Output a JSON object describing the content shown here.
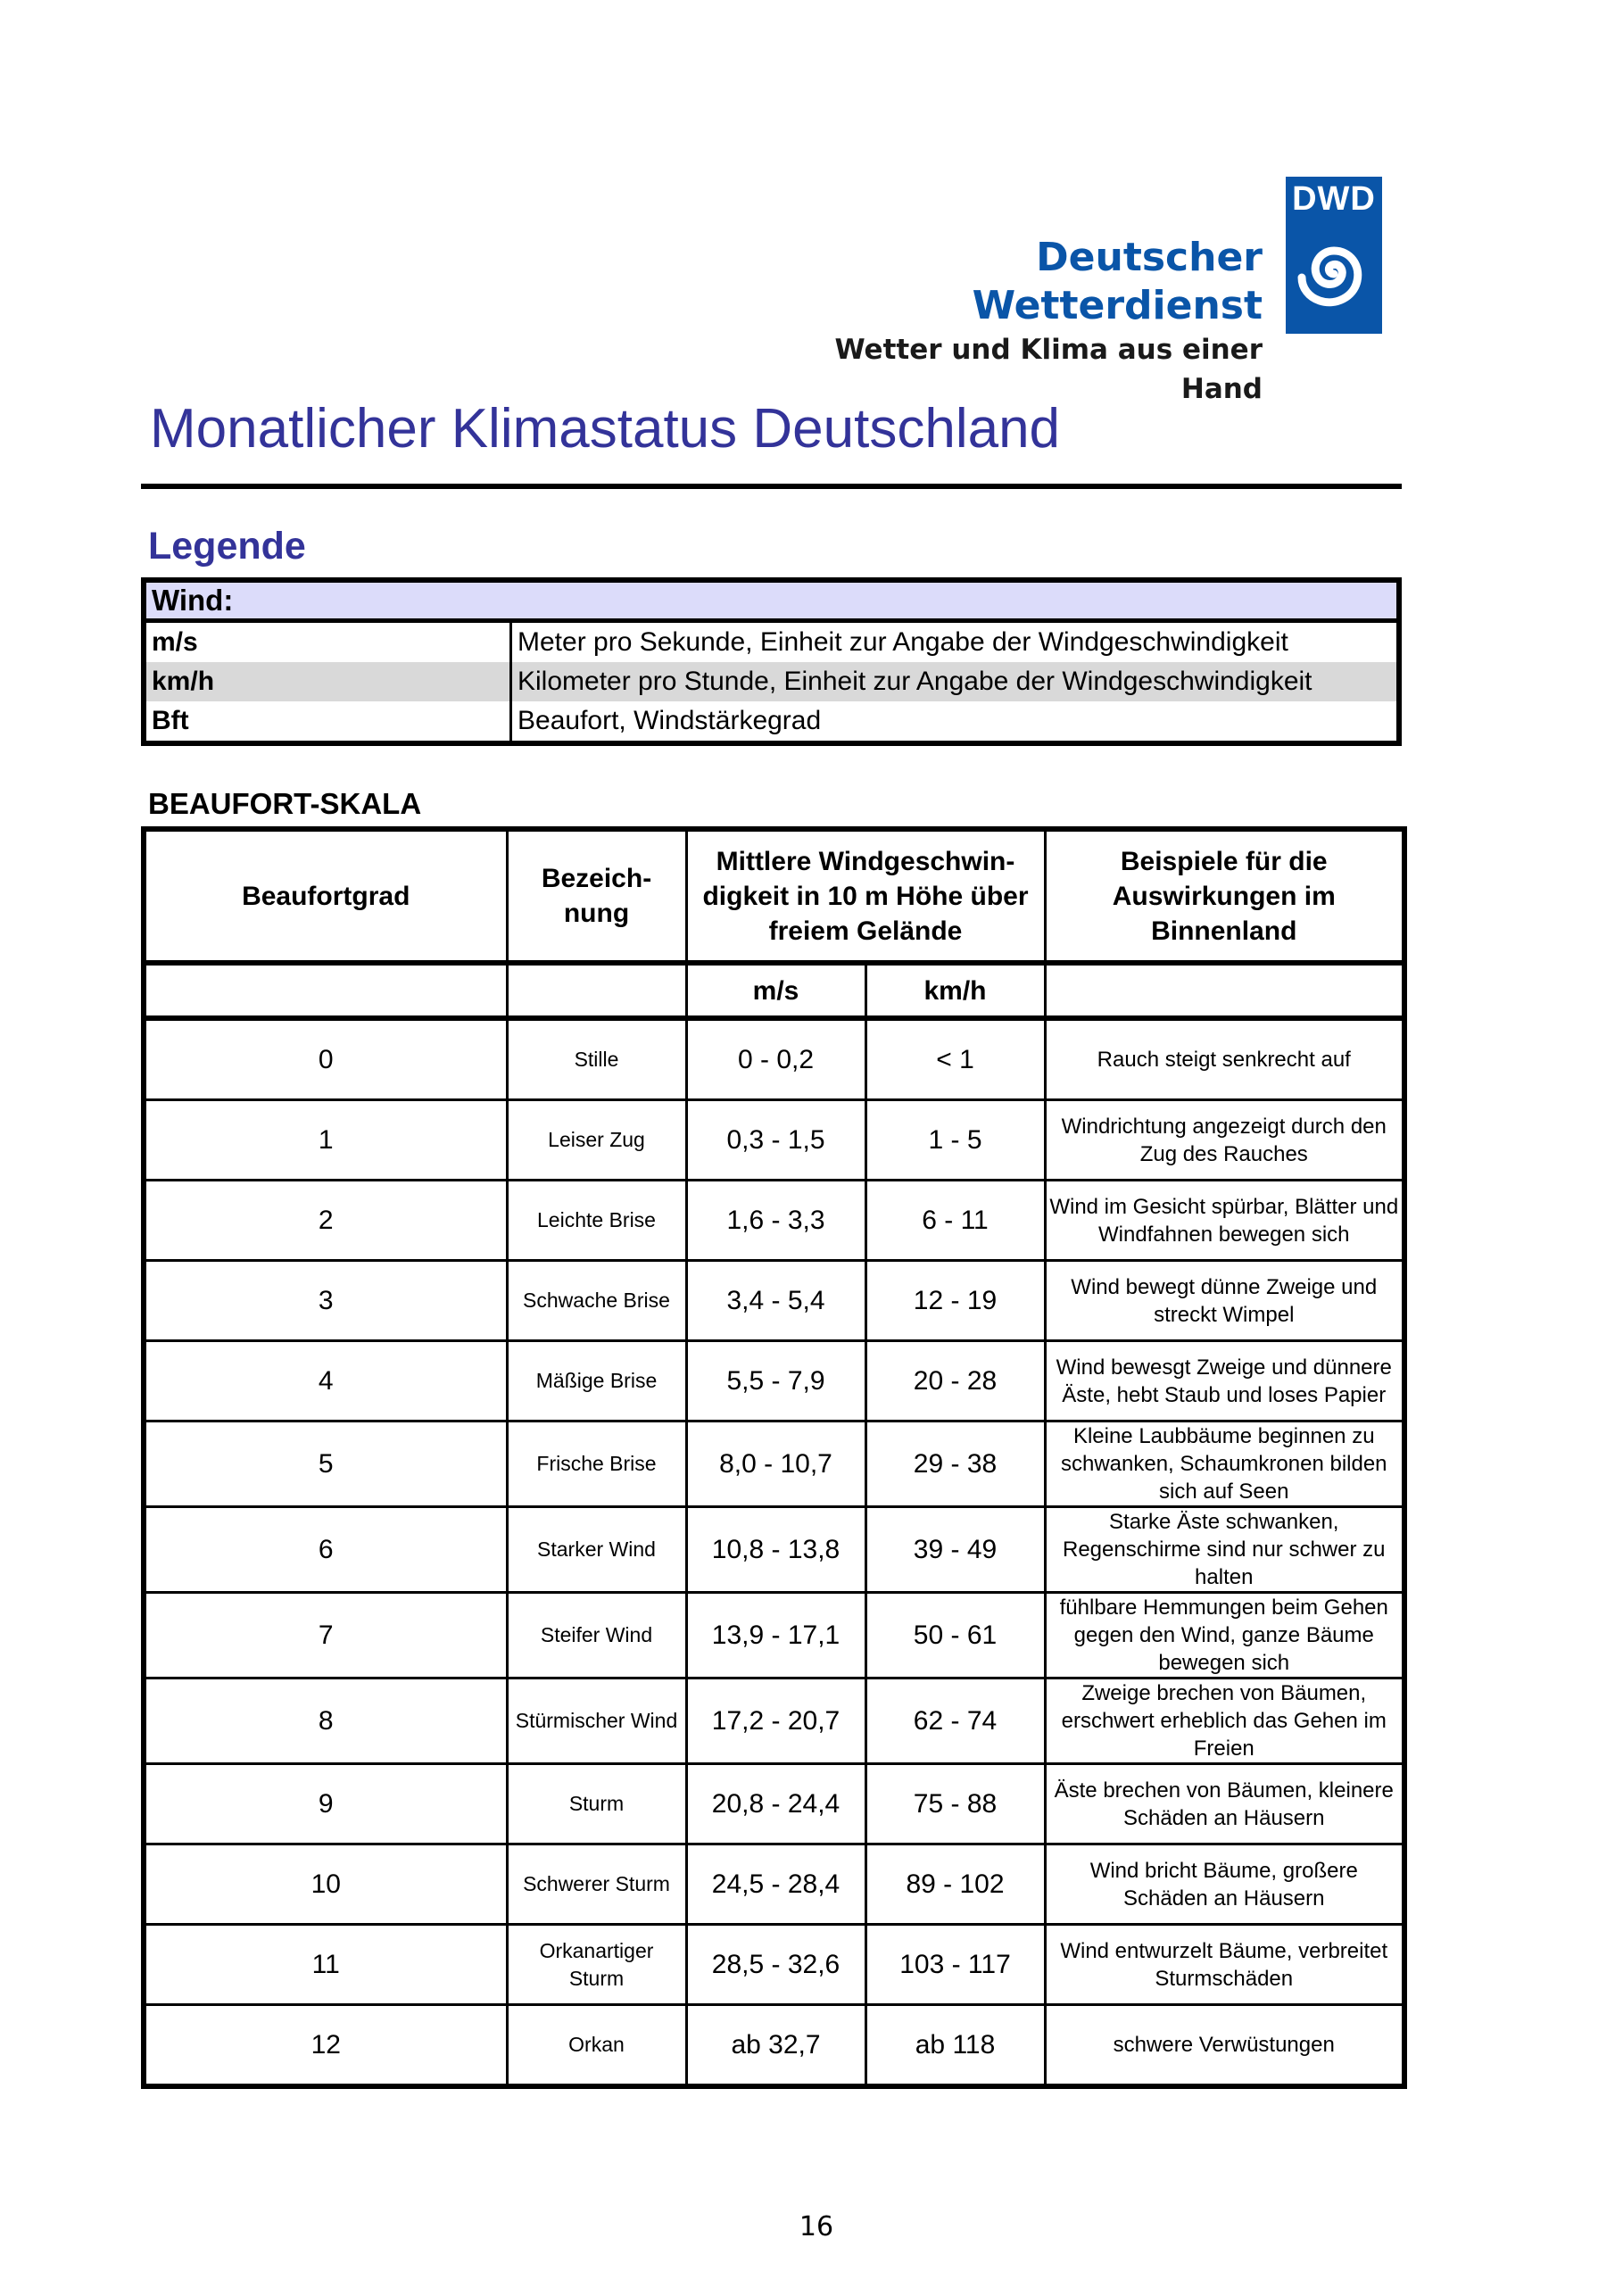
{
  "logo": {
    "name": "Deutscher Wetterdienst",
    "slogan": "Wetter und Klima aus einer Hand",
    "mark": "DWD",
    "color": "#0a55a8"
  },
  "title": "Monatlicher Klimastatus Deutschland",
  "legend": {
    "heading": "Legende",
    "section": "Wind:",
    "rows": [
      {
        "abbr": "m/s",
        "text": "Meter pro Sekunde, Einheit zur Angabe der Windgeschwindigkeit"
      },
      {
        "abbr": "km/h",
        "text": "Kilometer pro Stunde, Einheit zur Angabe der Windgeschwindigkeit"
      },
      {
        "abbr": "Bft",
        "text": "Beaufort, Windstärkegrad"
      }
    ]
  },
  "beaufort": {
    "heading": "BEAUFORT-SKALA",
    "headers": {
      "grade": "Beaufortgrad",
      "name": "Bezeich-nung",
      "speed": "Mittlere Windgeschwin-digkeit in 10 m Höhe über freiem Gelände",
      "effects": "Beispiele für die Auswirkungen im Binnenland",
      "ms": "m/s",
      "kmh": "km/h"
    },
    "rows": [
      {
        "grade": "0",
        "name": "Stille",
        "ms": "0 - 0,2",
        "kmh": "< 1",
        "effect": "Rauch steigt senkrecht auf"
      },
      {
        "grade": "1",
        "name": "Leiser Zug",
        "ms": "0,3 - 1,5",
        "kmh": "1 - 5",
        "effect": "Windrichtung angezeigt durch den Zug des Rauches"
      },
      {
        "grade": "2",
        "name": "Leichte Brise",
        "ms": "1,6 - 3,3",
        "kmh": "6 - 11",
        "effect": "Wind im Gesicht spürbar, Blätter und Windfahnen bewegen sich"
      },
      {
        "grade": "3",
        "name": "Schwache Brise",
        "ms": "3,4 - 5,4",
        "kmh": "12 - 19",
        "effect": "Wind bewegt dünne Zweige und streckt Wimpel"
      },
      {
        "grade": "4",
        "name": "Mäßige Brise",
        "ms": "5,5 - 7,9",
        "kmh": "20 - 28",
        "effect": "Wind bewesgt Zweige und dünnere Äste, hebt Staub und loses Papier"
      },
      {
        "grade": "5",
        "name": "Frische Brise",
        "ms": "8,0 - 10,7",
        "kmh": "29 - 38",
        "effect": "Kleine Laubbäume beginnen zu schwanken, Schaumkronen bilden sich auf Seen"
      },
      {
        "grade": "6",
        "name": "Starker Wind",
        "ms": "10,8 - 13,8",
        "kmh": "39 - 49",
        "effect": "Starke Äste schwanken, Regenschirme sind nur schwer zu halten"
      },
      {
        "grade": "7",
        "name": "Steifer Wind",
        "ms": "13,9 - 17,1",
        "kmh": "50 - 61",
        "effect": "fühlbare Hemmungen beim Gehen gegen den Wind, ganze Bäume bewegen sich"
      },
      {
        "grade": "8",
        "name": "Stürmischer Wind",
        "ms": "17,2 - 20,7",
        "kmh": "62 - 74",
        "effect": "Zweige brechen von Bäumen, erschwert erheblich das Gehen im Freien"
      },
      {
        "grade": "9",
        "name": "Sturm",
        "ms": "20,8 - 24,4",
        "kmh": "75 - 88",
        "effect": "Äste brechen von Bäumen, kleinere Schäden an Häusern"
      },
      {
        "grade": "10",
        "name": "Schwerer Sturm",
        "ms": "24,5 - 28,4",
        "kmh": "89 - 102",
        "effect": "Wind bricht Bäume, großere Schäden an Häusern"
      },
      {
        "grade": "11",
        "name": "Orkanartiger Sturm",
        "ms": "28,5 - 32,6",
        "kmh": "103 - 117",
        "effect": "Wind entwurzelt Bäume, verbreitet Sturmschäden"
      },
      {
        "grade": "12",
        "name": "Orkan",
        "ms": "ab 32,7",
        "kmh": "ab 118",
        "effect": "schwere Verwüstungen"
      }
    ]
  },
  "page_number": "16"
}
